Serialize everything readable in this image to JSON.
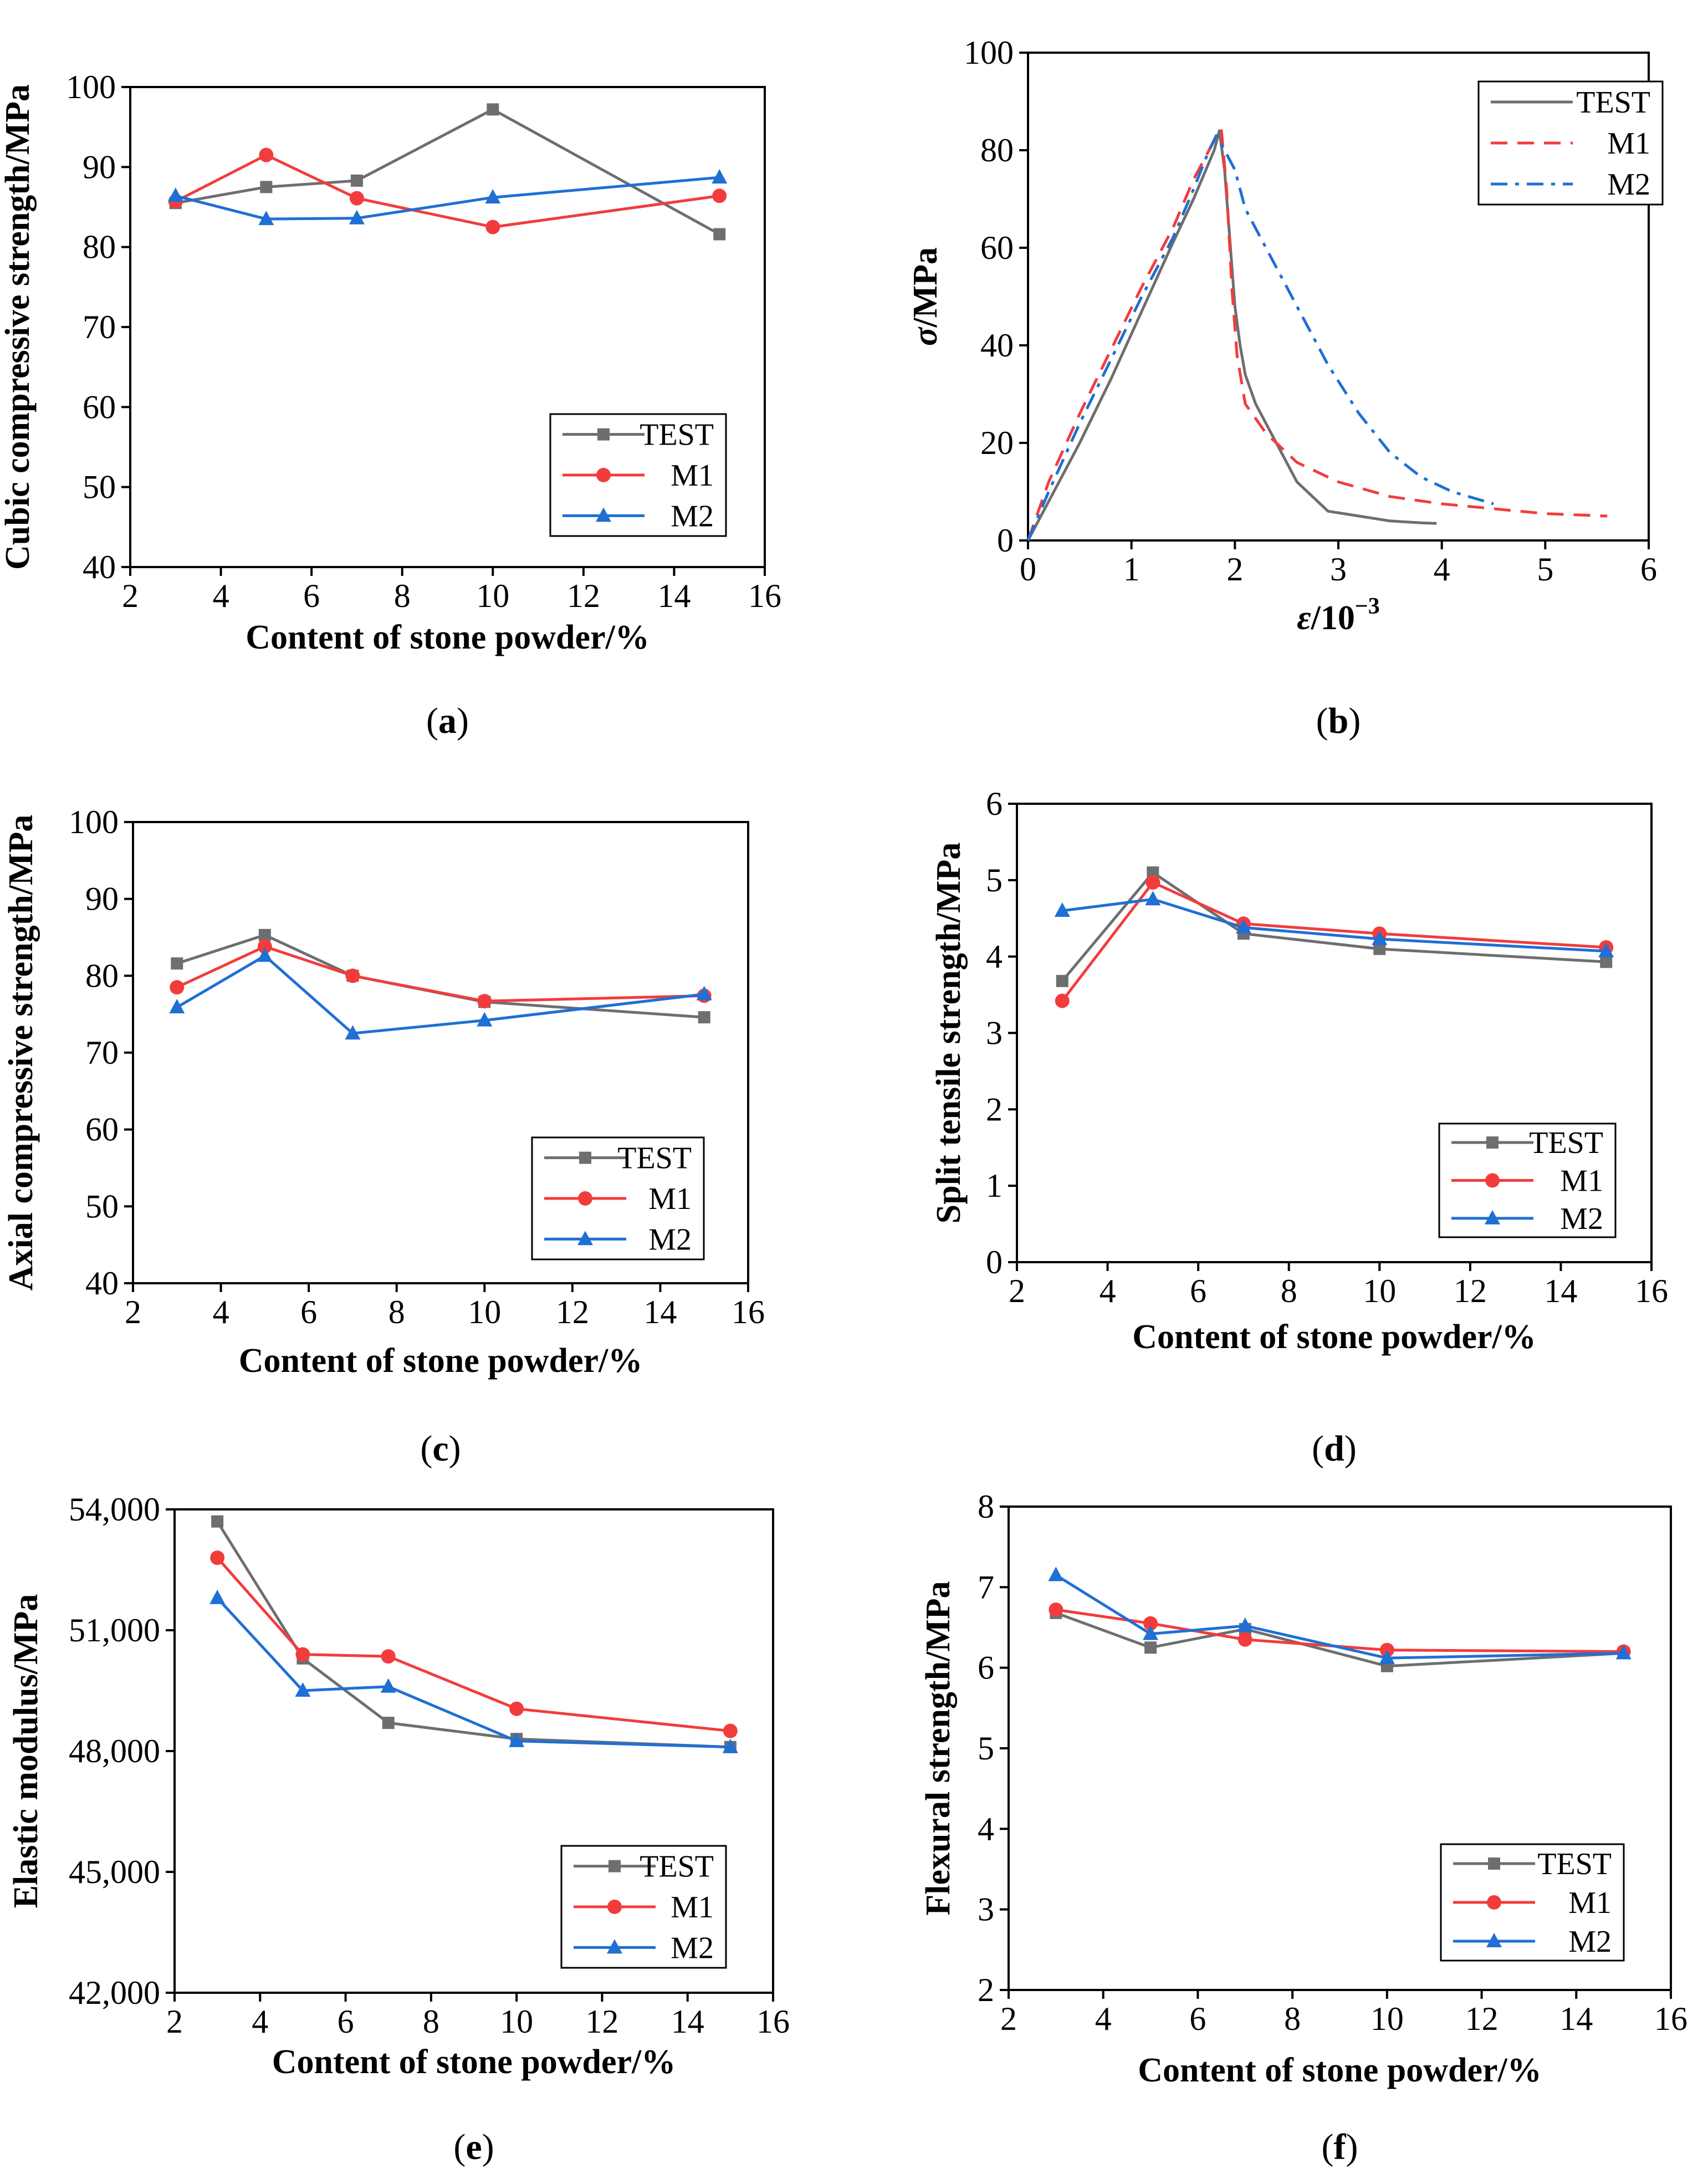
{
  "colors": {
    "test": "#6e6e6e",
    "m1": "#f23c3c",
    "m2": "#1f6fd4"
  },
  "chart_data": [
    {
      "id": "a",
      "type": "line",
      "panel_label_prefix": "(",
      "panel_label_letter": "a",
      "panel_label_suffix": ")",
      "xlabel": "Content of stone powder/%",
      "ylabel": "Cubic compressive strength/MPa",
      "xlim": [
        2,
        16
      ],
      "ylim": [
        40,
        100
      ],
      "xticks": [
        "2",
        "4",
        "6",
        "8",
        "10",
        "12",
        "14",
        "16"
      ],
      "yticks": [
        "40",
        "50",
        "60",
        "70",
        "80",
        "90",
        "100"
      ],
      "legend_position": "bottom-right",
      "series": [
        {
          "name": "TEST",
          "marker": "square",
          "x": [
            3,
            5,
            7,
            10,
            15
          ],
          "values": [
            85.5,
            87.5,
            88.3,
            97.2,
            81.6
          ]
        },
        {
          "name": "M1",
          "marker": "circle",
          "x": [
            3,
            5,
            7,
            10,
            15
          ],
          "values": [
            85.7,
            91.5,
            86.1,
            82.5,
            86.4
          ]
        },
        {
          "name": "M2",
          "marker": "triangle",
          "x": [
            3,
            5,
            7,
            10,
            15
          ],
          "values": [
            86.4,
            83.5,
            83.6,
            86.2,
            88.7
          ]
        }
      ]
    },
    {
      "id": "b",
      "type": "line",
      "panel_label_prefix": "(",
      "panel_label_letter": "b",
      "panel_label_suffix": ")",
      "xlabel_symbol": "ε",
      "xlabel_rest": "/10",
      "xlabel_exp": "−3",
      "ylabel_symbol": "σ",
      "ylabel_rest": "/MPa",
      "xlim": [
        0,
        6
      ],
      "ylim": [
        0,
        100
      ],
      "xticks": [
        "0",
        "1",
        "2",
        "3",
        "4",
        "5",
        "6"
      ],
      "yticks": [
        "0",
        "20",
        "40",
        "60",
        "80",
        "100"
      ],
      "legend_position": "top-right",
      "series": [
        {
          "name": "TEST",
          "style": "solid",
          "x": [
            0,
            0.2,
            0.5,
            0.8,
            1.1,
            1.4,
            1.6,
            1.8,
            1.85,
            1.9,
            1.95,
            2.0,
            2.05,
            2.1,
            2.2,
            2.4,
            2.6,
            2.9,
            3.2,
            3.5,
            3.8,
            3.95
          ],
          "values": [
            0,
            8,
            20,
            33,
            47,
            61,
            70,
            80,
            84,
            76,
            62,
            48,
            40,
            34,
            28,
            20,
            12,
            6,
            5,
            4,
            3.6,
            3.5
          ]
        },
        {
          "name": "M1",
          "style": "dashed",
          "x": [
            0,
            0.2,
            0.5,
            0.8,
            1.1,
            1.4,
            1.6,
            1.8,
            1.87,
            1.92,
            1.97,
            2.02,
            2.1,
            2.3,
            2.6,
            3.0,
            3.5,
            4.0,
            4.5,
            5.0,
            5.6
          ],
          "values": [
            0,
            12,
            26,
            39,
            52,
            64,
            74,
            82,
            84,
            72,
            52,
            38,
            28,
            22,
            16,
            12,
            9,
            7.5,
            6.5,
            5.5,
            5
          ]
        },
        {
          "name": "M2",
          "style": "dashdot",
          "x": [
            0,
            0.2,
            0.5,
            0.8,
            1.1,
            1.4,
            1.6,
            1.75,
            1.82,
            1.9,
            2.0,
            2.1,
            2.3,
            2.6,
            2.9,
            3.2,
            3.5,
            3.8,
            4.1,
            4.5
          ],
          "values": [
            0,
            10,
            24,
            37,
            50,
            62,
            72,
            80,
            83,
            80,
            76,
            68,
            60,
            48,
            36,
            26,
            18,
            13,
            10,
            7.5
          ]
        }
      ]
    },
    {
      "id": "c",
      "type": "line",
      "panel_label_prefix": "(",
      "panel_label_letter": "c",
      "panel_label_suffix": ")",
      "xlabel": "Content of stone powder/%",
      "ylabel": "Axial compressive strength/MPa",
      "xlim": [
        2,
        16
      ],
      "ylim": [
        40,
        100
      ],
      "xticks": [
        "2",
        "4",
        "6",
        "8",
        "10",
        "12",
        "14",
        "16"
      ],
      "yticks": [
        "40",
        "50",
        "60",
        "70",
        "80",
        "90",
        "100"
      ],
      "legend_position": "bottom-right",
      "series": [
        {
          "name": "TEST",
          "marker": "square",
          "x": [
            3,
            5,
            7,
            10,
            15
          ],
          "values": [
            81.6,
            85.3,
            80.0,
            76.6,
            74.6
          ]
        },
        {
          "name": "M1",
          "marker": "circle",
          "x": [
            3,
            5,
            7,
            10,
            15
          ],
          "values": [
            78.5,
            83.8,
            80.0,
            76.7,
            77.4
          ]
        },
        {
          "name": "M2",
          "marker": "triangle",
          "x": [
            3,
            5,
            7,
            10,
            15
          ],
          "values": [
            75.9,
            82.6,
            72.5,
            74.2,
            77.6
          ]
        }
      ]
    },
    {
      "id": "d",
      "type": "line",
      "panel_label_prefix": "(",
      "panel_label_letter": "d",
      "panel_label_suffix": ")",
      "xlabel": "Content of stone powder/%",
      "ylabel": "Split tensile strength/MPa",
      "xlim": [
        2,
        16
      ],
      "ylim": [
        0,
        6
      ],
      "xticks": [
        "2",
        "4",
        "6",
        "8",
        "10",
        "12",
        "14",
        "16"
      ],
      "yticks": [
        "0",
        "1",
        "2",
        "3",
        "4",
        "5",
        "6"
      ],
      "legend_position": "bottom-right",
      "series": [
        {
          "name": "TEST",
          "marker": "square",
          "x": [
            3,
            5,
            7,
            10,
            15
          ],
          "values": [
            3.68,
            5.1,
            4.3,
            4.1,
            3.93
          ]
        },
        {
          "name": "M1",
          "marker": "circle",
          "x": [
            3,
            5,
            7,
            10,
            15
          ],
          "values": [
            3.42,
            4.97,
            4.43,
            4.3,
            4.12
          ]
        },
        {
          "name": "M2",
          "marker": "triangle",
          "x": [
            3,
            5,
            7,
            10,
            15
          ],
          "values": [
            4.6,
            4.75,
            4.38,
            4.23,
            4.07
          ]
        }
      ]
    },
    {
      "id": "e",
      "type": "line",
      "panel_label_prefix": "(",
      "panel_label_letter": "e",
      "panel_label_suffix": ")",
      "xlabel": "Content of stone powder/%",
      "ylabel": "Elastic modulus/MPa",
      "xlim": [
        2,
        16
      ],
      "ylim": [
        42000,
        54000
      ],
      "xticks": [
        "2",
        "4",
        "6",
        "8",
        "10",
        "12",
        "14",
        "16"
      ],
      "yticks": [
        "42,000",
        "45,000",
        "48,000",
        "51,000",
        "54,000"
      ],
      "ytick_values": [
        42000,
        45000,
        48000,
        51000,
        54000
      ],
      "legend_position": "bottom-right",
      "series": [
        {
          "name": "TEST",
          "marker": "square",
          "x": [
            3,
            5,
            7,
            10,
            15
          ],
          "values": [
            53700,
            50300,
            48700,
            48300,
            48100
          ]
        },
        {
          "name": "M1",
          "marker": "circle",
          "x": [
            3,
            5,
            7,
            10,
            15
          ],
          "values": [
            52800,
            50400,
            50350,
            49050,
            48500
          ]
        },
        {
          "name": "M2",
          "marker": "triangle",
          "x": [
            3,
            5,
            7,
            10,
            15
          ],
          "values": [
            51800,
            49500,
            49600,
            48250,
            48100
          ]
        }
      ]
    },
    {
      "id": "f",
      "type": "line",
      "panel_label_prefix": "(",
      "panel_label_letter": "f",
      "panel_label_suffix": ")",
      "xlabel": "Content of stone powder/%",
      "ylabel": "Flexural strength/MPa",
      "xlim": [
        2,
        16
      ],
      "ylim": [
        2,
        8
      ],
      "xticks": [
        "2",
        "4",
        "6",
        "8",
        "10",
        "12",
        "14",
        "16"
      ],
      "yticks": [
        "2",
        "3",
        "4",
        "5",
        "6",
        "7",
        "8"
      ],
      "legend_position": "bottom-right",
      "series": [
        {
          "name": "TEST",
          "marker": "square",
          "x": [
            3,
            5,
            7,
            10,
            15
          ],
          "values": [
            6.68,
            6.25,
            6.48,
            6.02,
            6.18
          ]
        },
        {
          "name": "M1",
          "marker": "circle",
          "x": [
            3,
            5,
            7,
            10,
            15
          ],
          "values": [
            6.72,
            6.55,
            6.35,
            6.22,
            6.2
          ]
        },
        {
          "name": "M2",
          "marker": "triangle",
          "x": [
            3,
            5,
            7,
            10,
            15
          ],
          "values": [
            7.15,
            6.42,
            6.52,
            6.12,
            6.18
          ]
        }
      ]
    }
  ]
}
